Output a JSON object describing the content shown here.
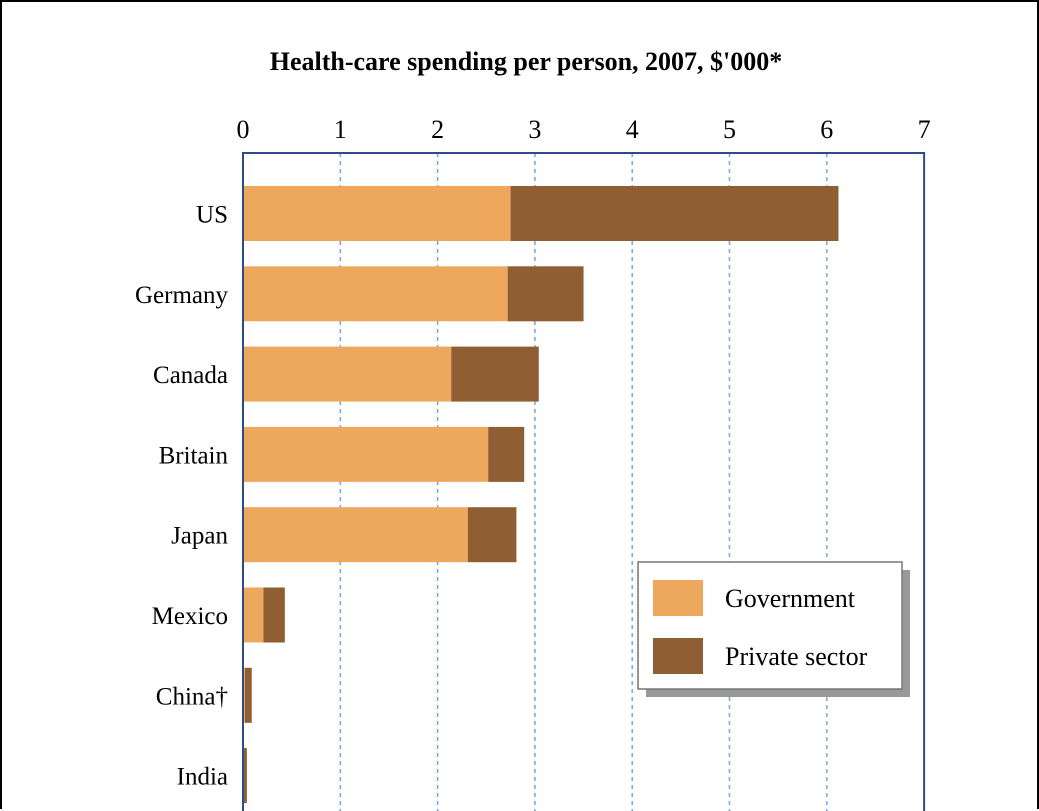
{
  "chart_data": {
    "type": "bar",
    "orientation": "horizontal",
    "stacked": true,
    "title": "Health-care spending per person, 2007, $'000*",
    "xlim": [
      0,
      7
    ],
    "x_ticks": [
      "0",
      "1",
      "2",
      "3",
      "4",
      "5",
      "6",
      "7"
    ],
    "grid": "vertical dashed",
    "categories": [
      "US",
      "Germany",
      "Canada",
      "Britain",
      "Japan",
      "Mexico",
      "China†",
      "India"
    ],
    "series": [
      {
        "name": "Government",
        "color": "#EEA85E",
        "values": [
          2.75,
          2.72,
          2.14,
          2.52,
          2.31,
          0.21,
          0.02,
          0.01
        ]
      },
      {
        "name": "Private sector",
        "color": "#8F5E33",
        "values": [
          3.37,
          0.78,
          0.9,
          0.37,
          0.5,
          0.22,
          0.07,
          0.03
        ]
      }
    ],
    "legend": {
      "position": "bottom-right",
      "entries": [
        "Government",
        "Private sector"
      ]
    }
  }
}
